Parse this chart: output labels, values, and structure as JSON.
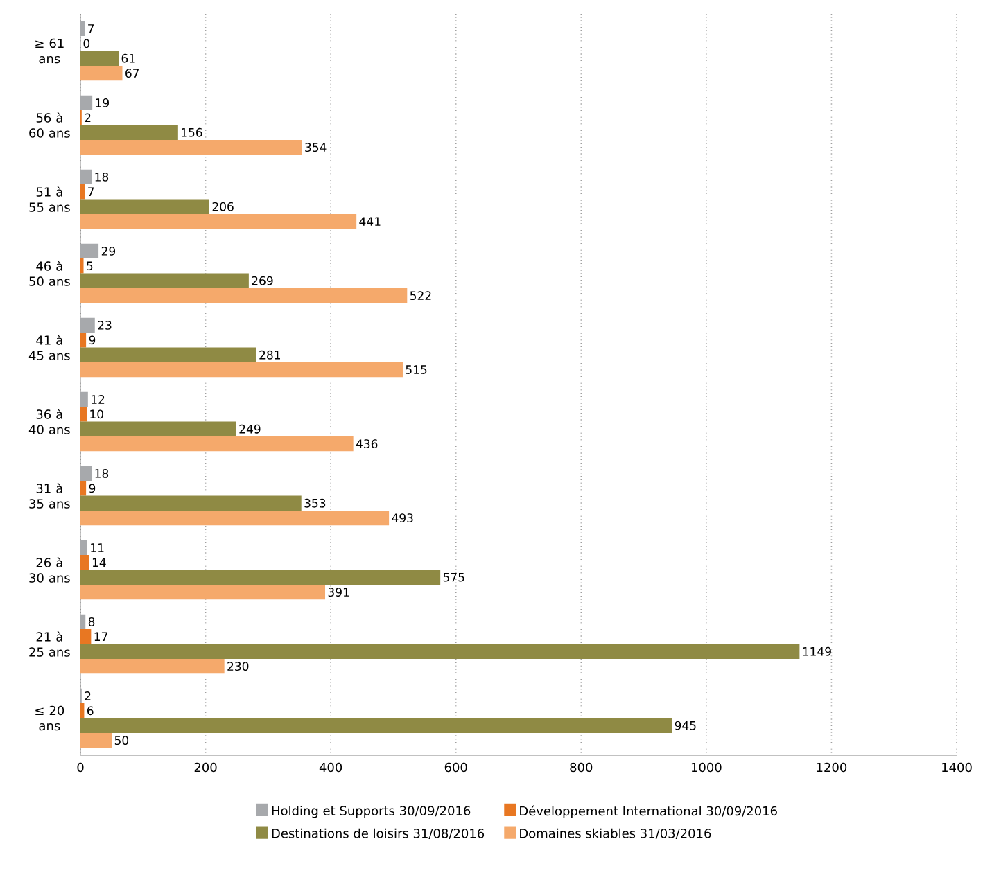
{
  "chart_data": {
    "type": "bar",
    "orientation": "horizontal",
    "categories": [
      "≥ 61 ans",
      "56 à 60 ans",
      "51 à 55 ans",
      "46 à 50 ans",
      "41 à 45 ans",
      "36 à 40 ans",
      "31 à 35 ans",
      "26 à 30 ans",
      "21 à 25 ans",
      "≤ 20 ans"
    ],
    "series": [
      {
        "name": "Holding et Supports 30/09/2016",
        "color": "#a7a9ac",
        "values": [
          7,
          19,
          18,
          29,
          23,
          12,
          18,
          11,
          8,
          2
        ]
      },
      {
        "name": "Développement International 30/09/2016",
        "color": "#e87722",
        "values": [
          0,
          2,
          7,
          5,
          9,
          10,
          9,
          14,
          17,
          6
        ]
      },
      {
        "name": "Destinations de loisirs 31/08/2016",
        "color": "#8f8a44",
        "values": [
          61,
          156,
          206,
          269,
          281,
          249,
          353,
          575,
          1149,
          945
        ]
      },
      {
        "name": "Domaines skiables 31/03/2016",
        "color": "#f5a96b",
        "values": [
          67,
          354,
          441,
          522,
          515,
          436,
          493,
          391,
          230,
          50
        ]
      }
    ],
    "xlim": [
      0,
      1400
    ],
    "xticks": [
      0,
      200,
      400,
      600,
      800,
      1000,
      1200,
      1400
    ],
    "grid": "x",
    "legend": "bottom",
    "data_labels": true
  }
}
